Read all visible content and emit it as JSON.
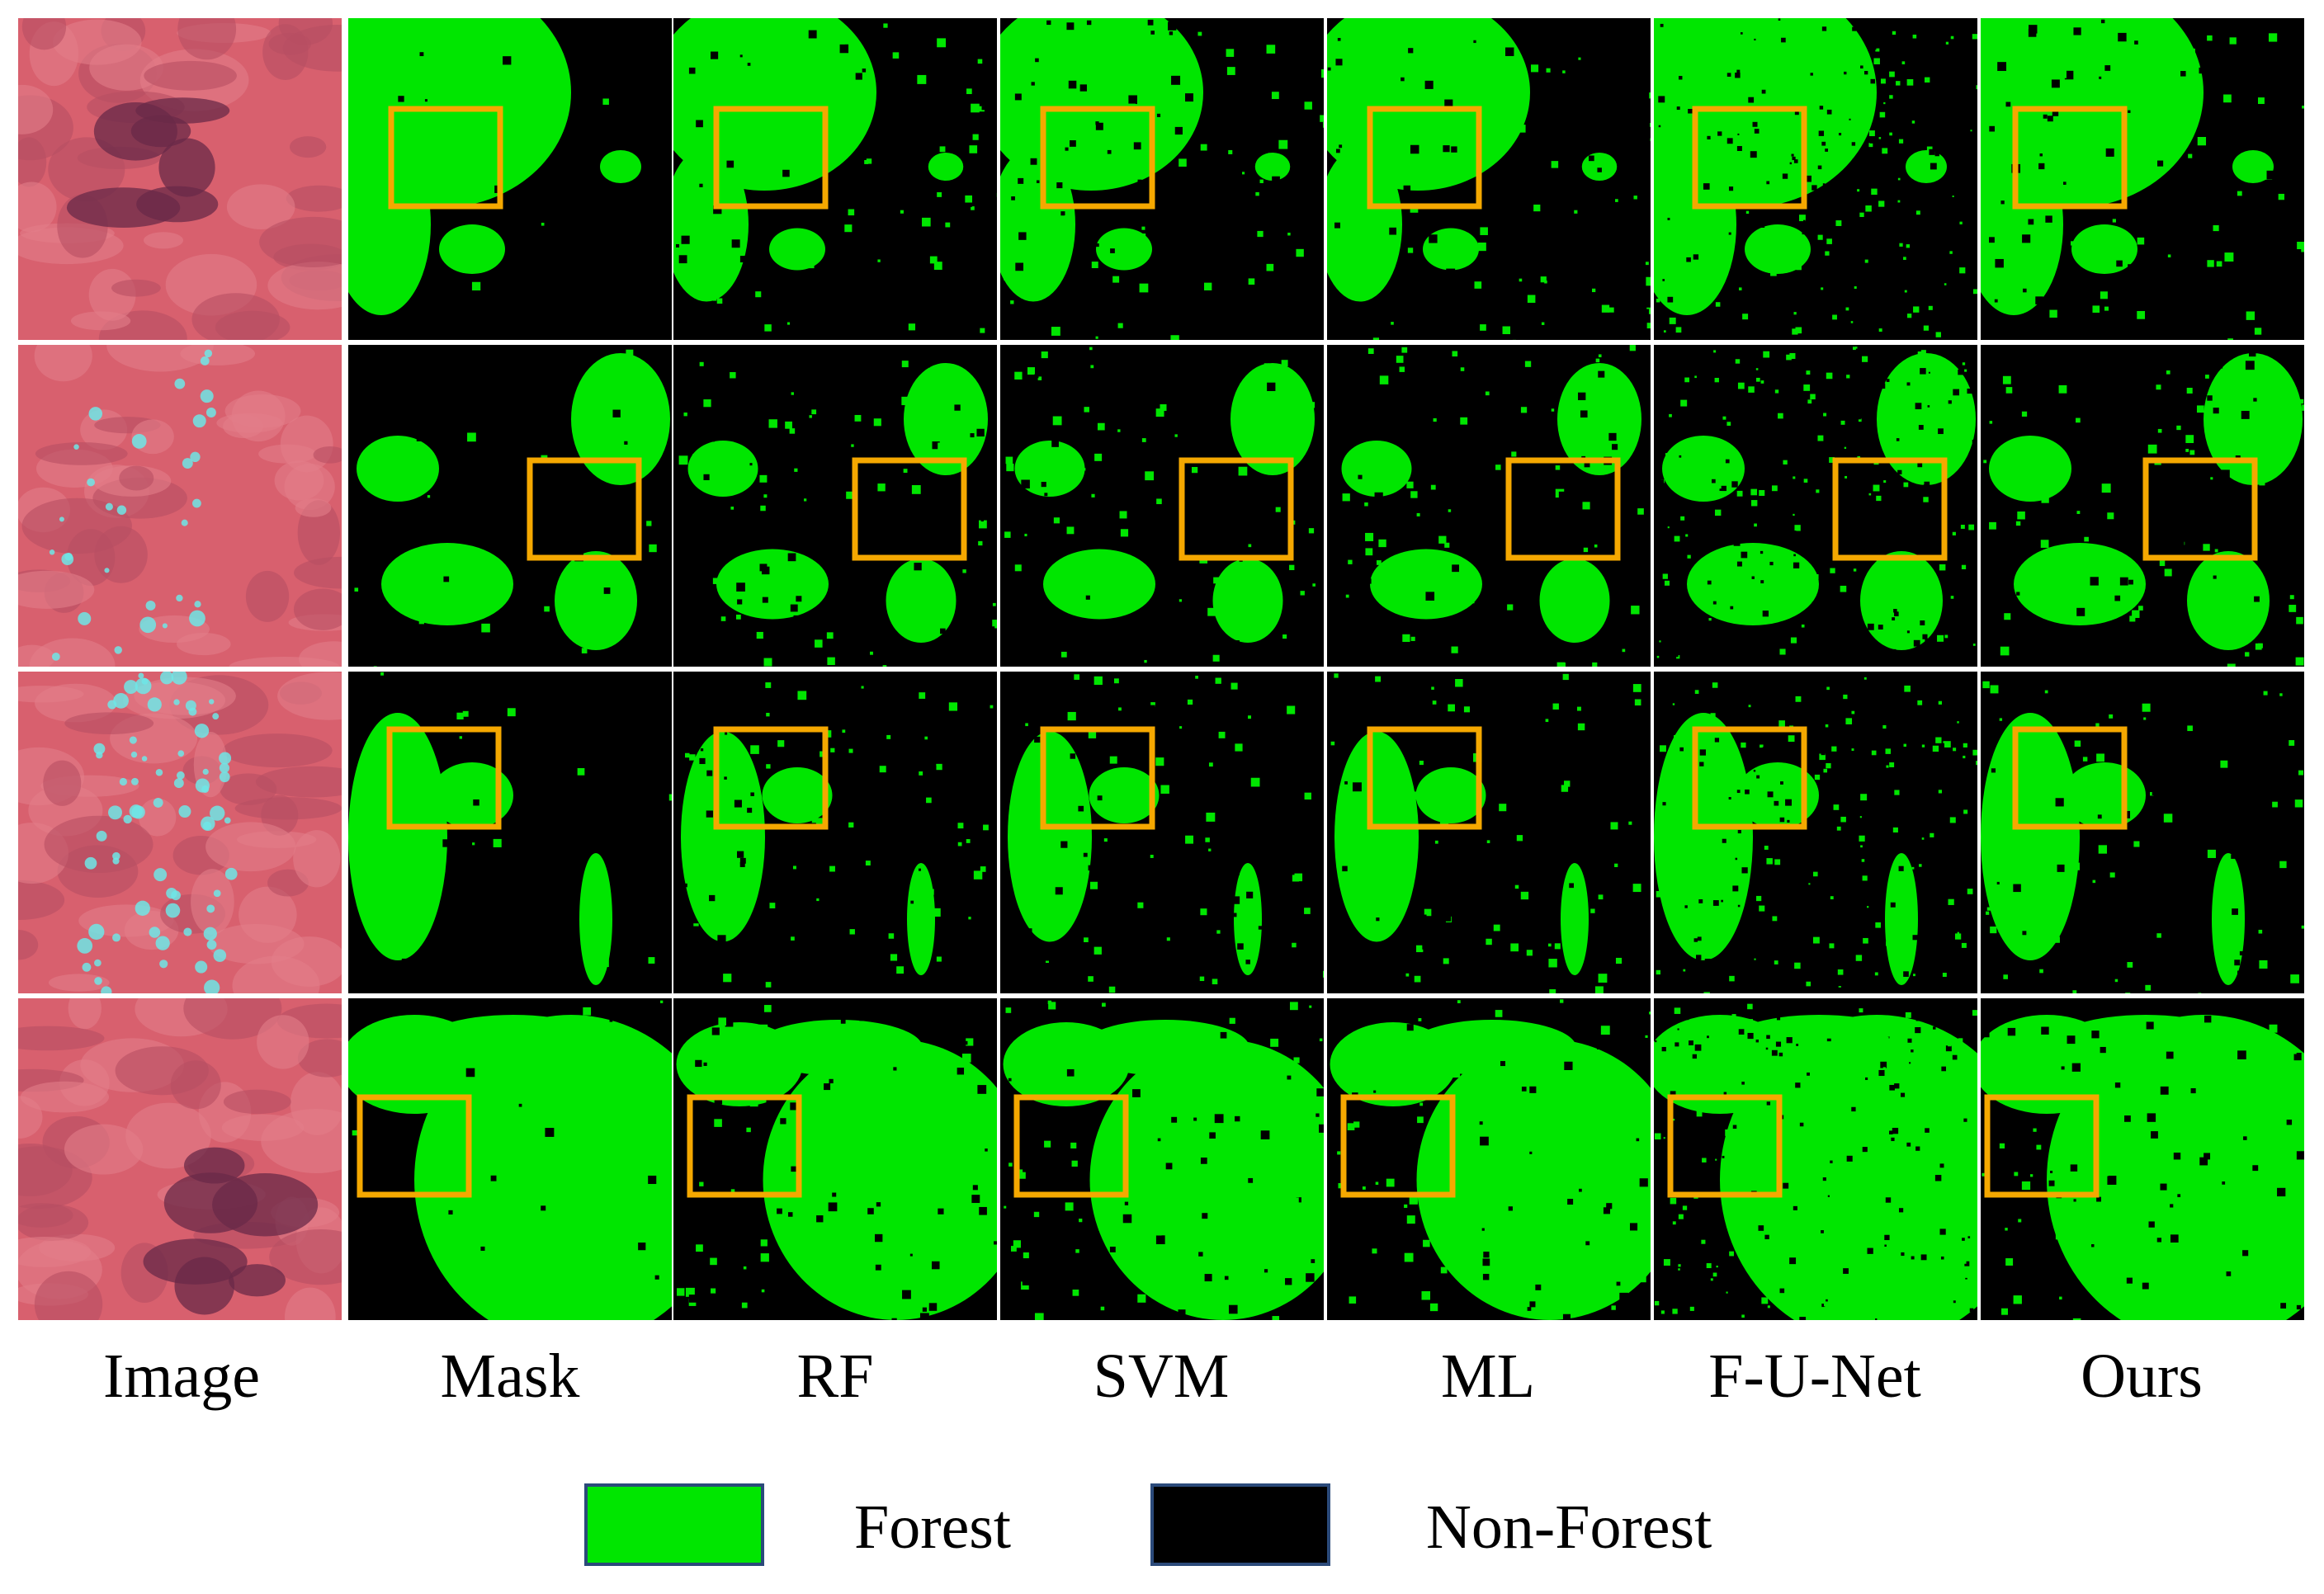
{
  "figure": {
    "columns": [
      "Image",
      "Mask",
      "RF",
      "SVM",
      "ML",
      "F-U-Net",
      "Ours"
    ],
    "rows": 4,
    "legend": [
      {
        "label": "Forest",
        "color": "#00e600"
      },
      {
        "label": "Non-Forest",
        "color": "#000000"
      }
    ],
    "colors": {
      "forest": "#00e600",
      "non_forest": "#000000",
      "highlight_box": "#f5a800",
      "image_base": "#d8606e",
      "image_dark": "#6a2a48",
      "image_water": "#6fe6e6"
    }
  }
}
